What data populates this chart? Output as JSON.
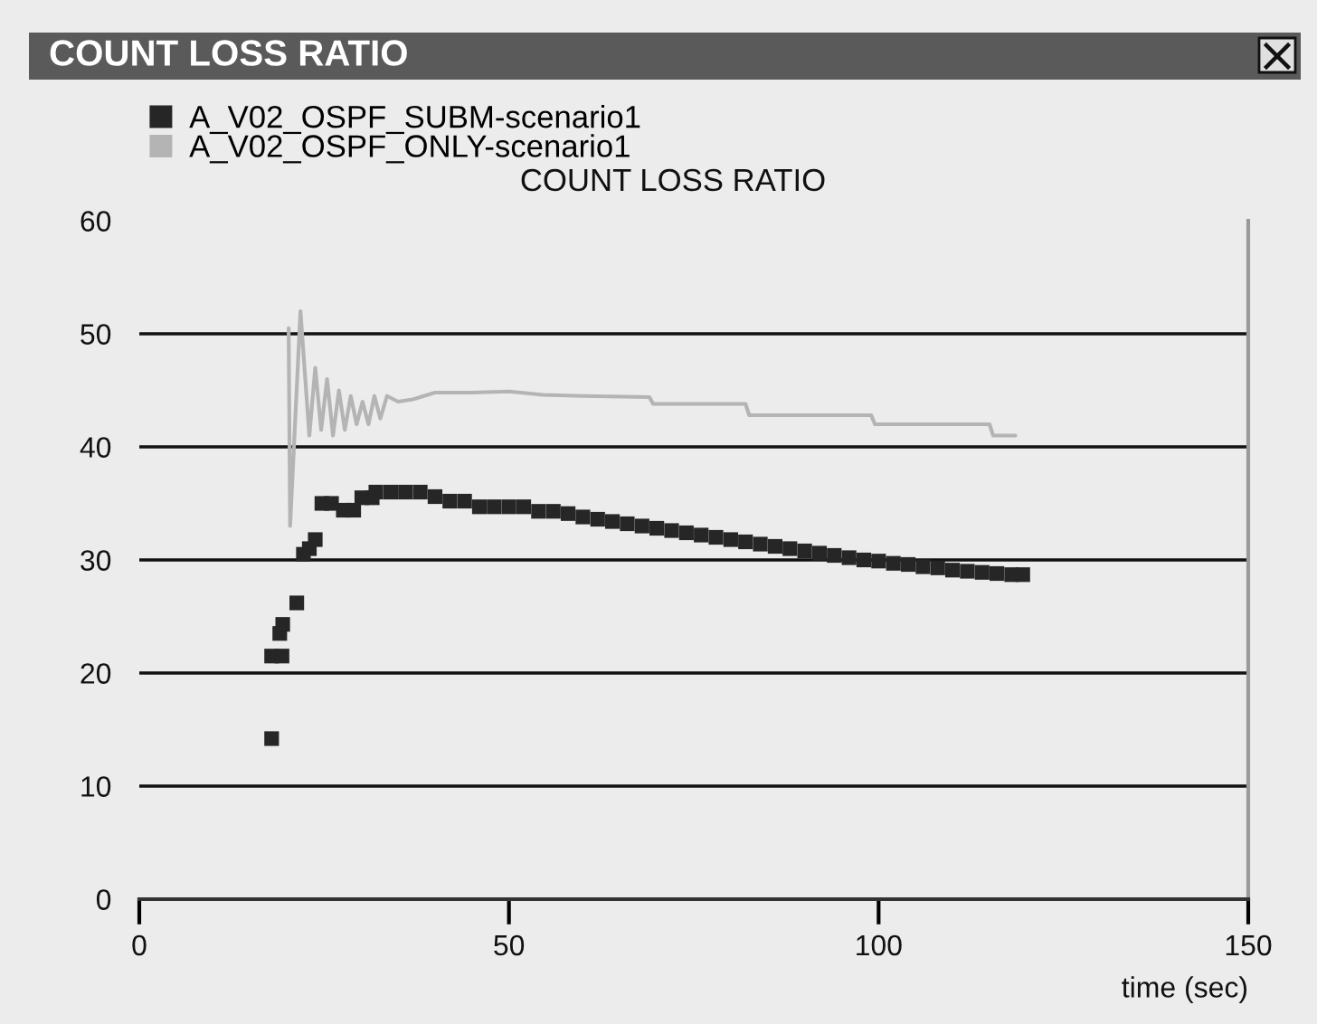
{
  "chart_data": {
    "type": "line",
    "title": "COUNT LOSS RATIO",
    "subtitle": "COUNT LOSS RATIO",
    "xlabel": "time (sec)",
    "xlim": [
      0,
      150
    ],
    "xticks": [
      0,
      50,
      100,
      150
    ],
    "ylim": [
      0,
      60
    ],
    "yticks": [
      0,
      10,
      20,
      30,
      40,
      50,
      60
    ],
    "grid": "y",
    "legend": "top left",
    "series": [
      {
        "name": "A_V02_OSPF_SUBM-scenario1",
        "type": "scatter",
        "marker": "square",
        "color": "#262626",
        "x": [
          17.9,
          17.9,
          19.3,
          19.0,
          19.4,
          21.3,
          22.2,
          23.0,
          23.8,
          24.7,
          26.0,
          27.6,
          29.0,
          30.1,
          31.5,
          32.0,
          34.0,
          36.0,
          38.0,
          40.0,
          42.0,
          44.0,
          46.0,
          48.0,
          50.0,
          52.0,
          54.0,
          56.0,
          58.0,
          60.0,
          62.0,
          64.0,
          66.0,
          68.0,
          70.0,
          72.0,
          74.0,
          76.0,
          78.0,
          80.0,
          82.0,
          84.0,
          86.0,
          88.0,
          90.0,
          92.0,
          94.0,
          96.0,
          98.0,
          100.0,
          102.0,
          104.0,
          106.0,
          108.0,
          110.0,
          112.0,
          114.0,
          116.0,
          118.0,
          119.5
        ],
        "values": [
          14.2,
          21.5,
          21.5,
          23.5,
          24.3,
          26.2,
          30.5,
          31.0,
          31.8,
          35.0,
          35.0,
          34.4,
          34.4,
          35.5,
          35.5,
          36.0,
          36.0,
          36.0,
          36.0,
          35.6,
          35.2,
          35.2,
          34.7,
          34.7,
          34.7,
          34.7,
          34.3,
          34.3,
          34.1,
          33.8,
          33.6,
          33.4,
          33.2,
          33.0,
          32.8,
          32.6,
          32.4,
          32.2,
          32.0,
          31.8,
          31.6,
          31.4,
          31.2,
          31.0,
          30.8,
          30.6,
          30.4,
          30.2,
          30.0,
          29.9,
          29.7,
          29.6,
          29.4,
          29.3,
          29.1,
          29.0,
          28.9,
          28.8,
          28.7,
          28.7
        ]
      },
      {
        "name": "A_V02_OSPF_ONLY-scenario1",
        "color": "#b4b4b4",
        "x": [
          20.2,
          20.4,
          21.8,
          23.0,
          23.8,
          24.6,
          25.4,
          26.2,
          27.0,
          27.8,
          28.6,
          29.4,
          30.2,
          31.0,
          31.8,
          32.6,
          33.5,
          35.0,
          37.0,
          40.0,
          45.0,
          50.0,
          54.6,
          60.0,
          69.0,
          69.5,
          82.0,
          82.5,
          99.0,
          99.5,
          115.0,
          115.5,
          118.5
        ],
        "values": [
          50.5,
          33.0,
          52.0,
          41.0,
          47.0,
          41.5,
          46.0,
          41.0,
          45.0,
          41.5,
          44.5,
          42.0,
          44.0,
          42.0,
          44.5,
          42.5,
          44.5,
          44.0,
          44.2,
          44.8,
          44.8,
          44.9,
          44.6,
          44.5,
          44.4,
          43.8,
          43.8,
          42.8,
          42.8,
          42.0,
          42.0,
          41.0,
          41.0
        ]
      }
    ]
  }
}
